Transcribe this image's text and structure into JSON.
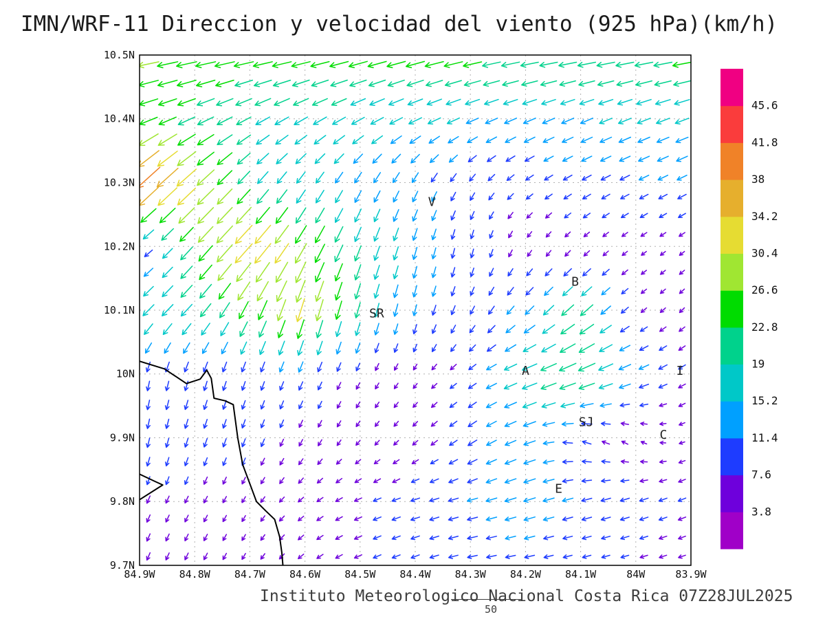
{
  "title": "IMN/WRF-11 Direccion y velocidad del viento (925 hPa)(km/h)",
  "footer": {
    "caption": "Instituto Meteorologico Nacional Costa Rica 07Z28JUL2025",
    "reference_vector_value": "50"
  },
  "chart_data": {
    "type": "vector_field",
    "title": "IMN/WRF-11 Direccion y velocidad del viento (925 hPa)(km/h)",
    "units": "km/h",
    "level": "925 hPa",
    "lon_w": {
      "min": 83.9,
      "max": 84.9
    },
    "lat_n": {
      "min": 9.7,
      "max": 10.5
    },
    "grid_dotted": true,
    "x_ticks": [
      {
        "label": "84.9W",
        "lon_w": 84.9
      },
      {
        "label": "84.8W",
        "lon_w": 84.8
      },
      {
        "label": "84.7W",
        "lon_w": 84.7
      },
      {
        "label": "84.6W",
        "lon_w": 84.6
      },
      {
        "label": "84.5W",
        "lon_w": 84.5
      },
      {
        "label": "84.4W",
        "lon_w": 84.4
      },
      {
        "label": "84.3W",
        "lon_w": 84.3
      },
      {
        "label": "84.2W",
        "lon_w": 84.2
      },
      {
        "label": "84.1W",
        "lon_w": 84.1
      },
      {
        "label": "84W",
        "lon_w": 84.0
      },
      {
        "label": "83.9W",
        "lon_w": 83.9
      }
    ],
    "y_ticks": [
      {
        "label": "10.5N",
        "lat_n": 10.5
      },
      {
        "label": "10.4N",
        "lat_n": 10.4
      },
      {
        "label": "10.3N",
        "lat_n": 10.3
      },
      {
        "label": "10.2N",
        "lat_n": 10.2
      },
      {
        "label": "10.1N",
        "lat_n": 10.1
      },
      {
        "label": "10N",
        "lat_n": 10.0
      },
      {
        "label": "9.9N",
        "lat_n": 9.9
      },
      {
        "label": "9.8N",
        "lat_n": 9.8
      },
      {
        "label": "9.7N",
        "lat_n": 9.7
      }
    ],
    "colorbar": {
      "levels_kmh": [
        3.8,
        7.6,
        11.4,
        15.2,
        19,
        22.8,
        26.6,
        30.4,
        34.2,
        38,
        41.8,
        45.6
      ],
      "level_labels": [
        "3.8",
        "7.6",
        "11.4",
        "15.2",
        "19",
        "22.8",
        "26.6",
        "30.4",
        "34.2",
        "38",
        "41.8",
        "45.6"
      ],
      "colors_low_to_high": [
        "#a000c8",
        "#6e00dc",
        "#1e3cff",
        "#00a0ff",
        "#00c8c8",
        "#00d28c",
        "#00dc00",
        "#a0e632",
        "#e6dc32",
        "#e6af2d",
        "#f08228",
        "#fa3c3c",
        "#f00082"
      ],
      "position": "right"
    },
    "stations": [
      {
        "label": "V",
        "lon_w": 84.37,
        "lat_n": 10.27
      },
      {
        "label": "B",
        "lon_w": 84.11,
        "lat_n": 10.145
      },
      {
        "label": "SR",
        "lon_w": 84.47,
        "lat_n": 10.095
      },
      {
        "label": "A",
        "lon_w": 84.2,
        "lat_n": 10.005
      },
      {
        "label": "I",
        "lon_w": 83.92,
        "lat_n": 10.005
      },
      {
        "label": "SJ",
        "lon_w": 84.09,
        "lat_n": 9.925
      },
      {
        "label": "C",
        "lon_w": 83.95,
        "lat_n": 9.905
      },
      {
        "label": "E",
        "lon_w": 84.14,
        "lat_n": 9.82
      }
    ],
    "wind_grid": {
      "note": "u = eastward component km/h, v = northward component km/h, sampled at 0.1 deg grid",
      "lons_w": [
        84.9,
        84.8,
        84.7,
        84.6,
        84.5,
        84.4,
        84.3,
        84.2,
        84.1,
        84.0,
        83.9
      ],
      "lats_n": [
        10.5,
        10.4,
        10.3,
        10.2,
        10.1,
        10.0,
        9.9,
        9.8,
        9.7
      ],
      "u_kmh": [
        [
          -27,
          -26,
          -25,
          -24,
          -24,
          -24,
          -24,
          -23,
          -23,
          -23,
          -24
        ],
        [
          -22,
          -20,
          -17,
          -16,
          -15,
          -15,
          -14,
          -14,
          -14,
          -15,
          -16
        ],
        [
          -32,
          -24,
          -13,
          -9,
          -7,
          -6,
          -5,
          -7,
          -9,
          -10,
          -10
        ],
        [
          -6,
          -16,
          -24,
          -14,
          -7,
          -4,
          -2,
          -3,
          -4,
          -4,
          -4
        ],
        [
          -13,
          -13,
          -11,
          -9,
          -5,
          -3,
          -4,
          -9,
          -16,
          -5,
          -4
        ],
        [
          -2,
          -3,
          -3,
          -4,
          -3,
          -3,
          -7,
          -18,
          -22,
          -12,
          -6
        ],
        [
          -2,
          -3,
          -3,
          -3,
          -3,
          -4,
          -9,
          -13,
          -9,
          -4,
          -4
        ],
        [
          -3,
          -3,
          -3,
          -5,
          -7,
          -9,
          -11,
          -13,
          -11,
          -9,
          -7
        ],
        [
          -3,
          -3,
          -3,
          -5,
          -7,
          -8,
          -10,
          -10,
          -8,
          -7,
          -6
        ]
      ],
      "v_kmh": [
        [
          -5,
          -5,
          -5,
          -5,
          -6,
          -6,
          -5,
          -4,
          -4,
          -4,
          -4
        ],
        [
          -8,
          -9,
          -9,
          -9,
          -8,
          -7,
          -6,
          -6,
          -6,
          -6,
          -6
        ],
        [
          -30,
          -22,
          -15,
          -13,
          -12,
          -11,
          -7,
          -5,
          -5,
          -5,
          -5
        ],
        [
          -4,
          -18,
          -26,
          -24,
          -18,
          -14,
          -9,
          -5,
          -4,
          -3,
          -3
        ],
        [
          -13,
          -14,
          -22,
          -30,
          -18,
          -12,
          -8,
          -9,
          -14,
          -4,
          -4
        ],
        [
          -10,
          -10,
          -9,
          -9,
          -6,
          -4,
          -5,
          -7,
          -9,
          -5,
          -4
        ],
        [
          -10,
          -9,
          -8,
          -6,
          -4,
          -4,
          -6,
          -5,
          3,
          3,
          -2
        ],
        [
          -7,
          -6,
          -5,
          -4,
          -3,
          -3,
          -3,
          -4,
          -3,
          -3,
          -3
        ],
        [
          -7,
          -6,
          -5,
          -4,
          -3,
          -3,
          -2,
          -2,
          -2,
          -2,
          -2
        ]
      ]
    },
    "coastline_lonlat": [
      [
        [
          84.9,
          10.02
        ],
        [
          84.855,
          10.008
        ],
        [
          84.815,
          9.985
        ],
        [
          84.79,
          9.992
        ],
        [
          84.778,
          10.006
        ],
        [
          84.77,
          9.993
        ],
        [
          84.765,
          9.962
        ],
        [
          84.745,
          9.958
        ],
        [
          84.73,
          9.952
        ],
        [
          84.722,
          9.9
        ],
        [
          84.713,
          9.858
        ],
        [
          84.7,
          9.828
        ],
        [
          84.688,
          9.8
        ],
        [
          84.672,
          9.786
        ],
        [
          84.655,
          9.772
        ],
        [
          84.646,
          9.745
        ],
        [
          84.642,
          9.72
        ],
        [
          84.64,
          9.7
        ]
      ],
      [
        [
          84.9,
          9.843
        ],
        [
          84.873,
          9.832
        ],
        [
          84.858,
          9.826
        ],
        [
          84.9,
          9.803
        ]
      ]
    ]
  }
}
